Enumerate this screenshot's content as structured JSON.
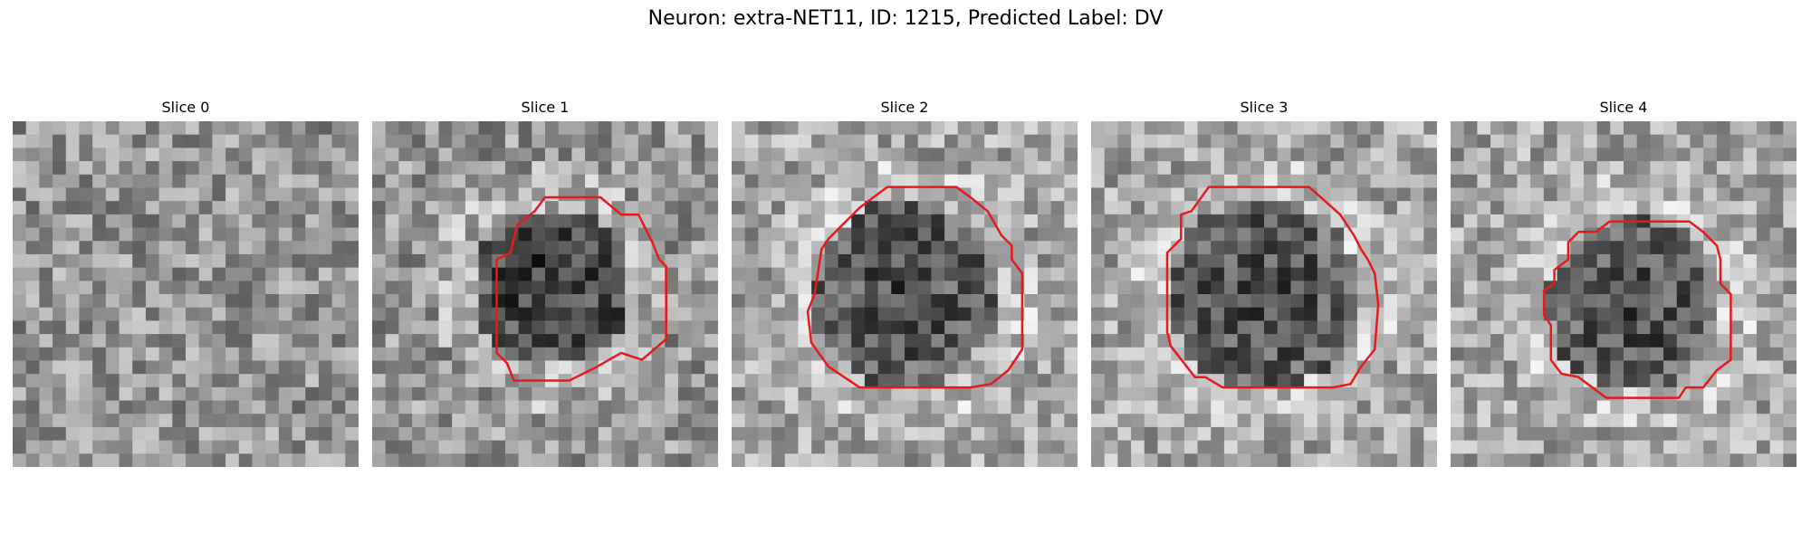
{
  "figure": {
    "title": "Neuron: extra-NET11, ID: 1215, Predicted Label: DV",
    "contour_color": "#e8191c"
  },
  "panels": [
    {
      "label": "Slice 0",
      "seed": 11,
      "base": 150,
      "has_roi": false,
      "dark_center": false,
      "roi": []
    },
    {
      "label": "Slice 1",
      "seed": 23,
      "base": 150,
      "has_roi": true,
      "dark_center": true,
      "center": [
        0.52,
        0.48
      ],
      "radius": 0.23,
      "roi": [
        [
          0.5,
          0.22
        ],
        [
          0.66,
          0.22
        ],
        [
          0.72,
          0.27
        ],
        [
          0.77,
          0.27
        ],
        [
          0.81,
          0.35
        ],
        [
          0.83,
          0.4
        ],
        [
          0.85,
          0.42
        ],
        [
          0.85,
          0.63
        ],
        [
          0.78,
          0.69
        ],
        [
          0.72,
          0.67
        ],
        [
          0.65,
          0.71
        ],
        [
          0.57,
          0.75
        ],
        [
          0.41,
          0.75
        ],
        [
          0.39,
          0.7
        ],
        [
          0.36,
          0.67
        ],
        [
          0.36,
          0.4
        ],
        [
          0.4,
          0.38
        ],
        [
          0.42,
          0.3
        ],
        [
          0.47,
          0.26
        ]
      ]
    },
    {
      "label": "Slice 2",
      "seed": 37,
      "base": 165,
      "has_roi": true,
      "dark_center": true,
      "center": [
        0.5,
        0.5
      ],
      "radius": 0.27,
      "roi": [
        [
          0.45,
          0.19
        ],
        [
          0.65,
          0.19
        ],
        [
          0.69,
          0.22
        ],
        [
          0.74,
          0.26
        ],
        [
          0.78,
          0.33
        ],
        [
          0.81,
          0.36
        ],
        [
          0.81,
          0.4
        ],
        [
          0.84,
          0.44
        ],
        [
          0.84,
          0.66
        ],
        [
          0.8,
          0.72
        ],
        [
          0.75,
          0.76
        ],
        [
          0.69,
          0.77
        ],
        [
          0.37,
          0.77
        ],
        [
          0.28,
          0.71
        ],
        [
          0.23,
          0.64
        ],
        [
          0.22,
          0.55
        ],
        [
          0.24,
          0.5
        ],
        [
          0.26,
          0.37
        ],
        [
          0.28,
          0.34
        ],
        [
          0.32,
          0.3
        ],
        [
          0.37,
          0.25
        ]
      ]
    },
    {
      "label": "Slice 3",
      "seed": 49,
      "base": 165,
      "has_roi": true,
      "dark_center": true,
      "center": [
        0.5,
        0.5
      ],
      "radius": 0.28,
      "roi": [
        [
          0.34,
          0.19
        ],
        [
          0.63,
          0.19
        ],
        [
          0.72,
          0.27
        ],
        [
          0.76,
          0.33
        ],
        [
          0.78,
          0.37
        ],
        [
          0.8,
          0.4
        ],
        [
          0.82,
          0.44
        ],
        [
          0.83,
          0.53
        ],
        [
          0.82,
          0.66
        ],
        [
          0.78,
          0.71
        ],
        [
          0.75,
          0.76
        ],
        [
          0.7,
          0.77
        ],
        [
          0.38,
          0.77
        ],
        [
          0.33,
          0.74
        ],
        [
          0.3,
          0.74
        ],
        [
          0.23,
          0.65
        ],
        [
          0.22,
          0.61
        ],
        [
          0.22,
          0.38
        ],
        [
          0.26,
          0.34
        ],
        [
          0.26,
          0.27
        ],
        [
          0.29,
          0.26
        ]
      ]
    },
    {
      "label": "Slice 4",
      "seed": 61,
      "base": 165,
      "has_roi": true,
      "dark_center": true,
      "center": [
        0.53,
        0.53
      ],
      "radius": 0.25,
      "roi": [
        [
          0.46,
          0.29
        ],
        [
          0.69,
          0.29
        ],
        [
          0.73,
          0.32
        ],
        [
          0.77,
          0.36
        ],
        [
          0.78,
          0.4
        ],
        [
          0.78,
          0.47
        ],
        [
          0.81,
          0.5
        ],
        [
          0.81,
          0.69
        ],
        [
          0.77,
          0.72
        ],
        [
          0.73,
          0.77
        ],
        [
          0.68,
          0.77
        ],
        [
          0.66,
          0.8
        ],
        [
          0.45,
          0.8
        ],
        [
          0.37,
          0.74
        ],
        [
          0.32,
          0.73
        ],
        [
          0.29,
          0.69
        ],
        [
          0.29,
          0.59
        ],
        [
          0.27,
          0.56
        ],
        [
          0.27,
          0.49
        ],
        [
          0.3,
          0.47
        ],
        [
          0.3,
          0.43
        ],
        [
          0.34,
          0.4
        ],
        [
          0.34,
          0.35
        ],
        [
          0.37,
          0.32
        ],
        [
          0.42,
          0.32
        ]
      ]
    }
  ]
}
